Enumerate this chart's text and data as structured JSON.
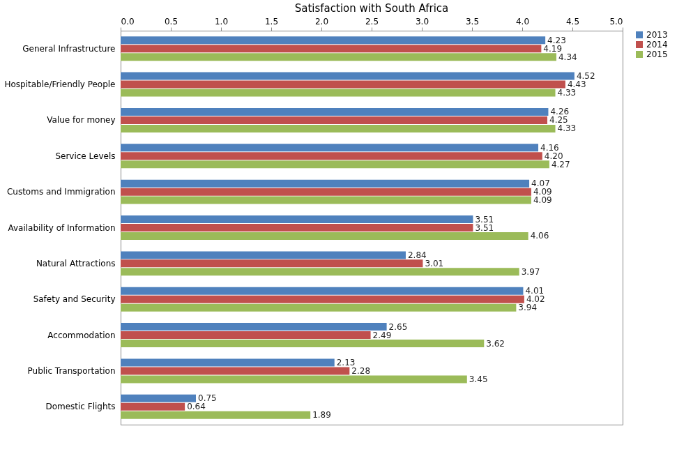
{
  "chart_data": {
    "type": "bar",
    "orientation": "horizontal",
    "title": "Satisfaction with South Africa",
    "categories": [
      "General Infrastructure",
      "Hospitable/Friendly People",
      "Value for money",
      "Service Levels",
      "Customs and Immigration",
      "Availability of Information",
      "Natural Attractions",
      "Safety and Security",
      "Accommodation",
      "Public Transportation",
      "Domestic Flights"
    ],
    "series": [
      {
        "name": "2013",
        "color": "#4f81bd",
        "values": [
          4.23,
          4.52,
          4.26,
          4.16,
          4.07,
          3.51,
          2.84,
          4.01,
          2.65,
          2.13,
          0.75
        ],
        "value_labels": [
          "4.23",
          "4.52",
          "4.26",
          "4.16",
          "4.07",
          "3.51",
          "2.84",
          "4.01",
          "2.65",
          "2.13",
          "0.75"
        ]
      },
      {
        "name": "2014",
        "color": "#c0504d",
        "values": [
          4.19,
          4.43,
          4.25,
          4.2,
          4.09,
          3.51,
          3.01,
          4.02,
          2.49,
          2.28,
          0.64
        ],
        "value_labels": [
          "4.19",
          "4.43",
          "4.25",
          "4.20",
          "4.09",
          "3.51",
          "3.01",
          "4.02",
          "2.49",
          "2.28",
          "0.64"
        ]
      },
      {
        "name": "2015",
        "color": "#9bbb59",
        "values": [
          4.34,
          4.33,
          4.33,
          4.27,
          4.09,
          4.06,
          3.97,
          3.94,
          3.62,
          3.45,
          1.89
        ],
        "value_labels": [
          "4.34",
          "4.33",
          "4.33",
          "4.27",
          "4.09",
          "4.06",
          "3.97",
          "3.94",
          "3.62",
          "3.45",
          "1.89"
        ]
      }
    ],
    "xlim": [
      0,
      5
    ],
    "xticks": [
      {
        "value": 0,
        "label": "0.0"
      },
      {
        "value": 0.5,
        "label": "0.5"
      },
      {
        "value": 1,
        "label": "1.0"
      },
      {
        "value": 1.5,
        "label": "1.5"
      },
      {
        "value": 2,
        "label": "2.0"
      },
      {
        "value": 2.5,
        "label": "2.5"
      },
      {
        "value": 3,
        "label": "3.0"
      },
      {
        "value": 3.5,
        "label": "3.5"
      },
      {
        "value": 4,
        "label": "4.0"
      },
      {
        "value": 4.5,
        "label": "4.5"
      },
      {
        "value": 5,
        "label": "5.0"
      }
    ],
    "grid": false,
    "legend": "right"
  }
}
